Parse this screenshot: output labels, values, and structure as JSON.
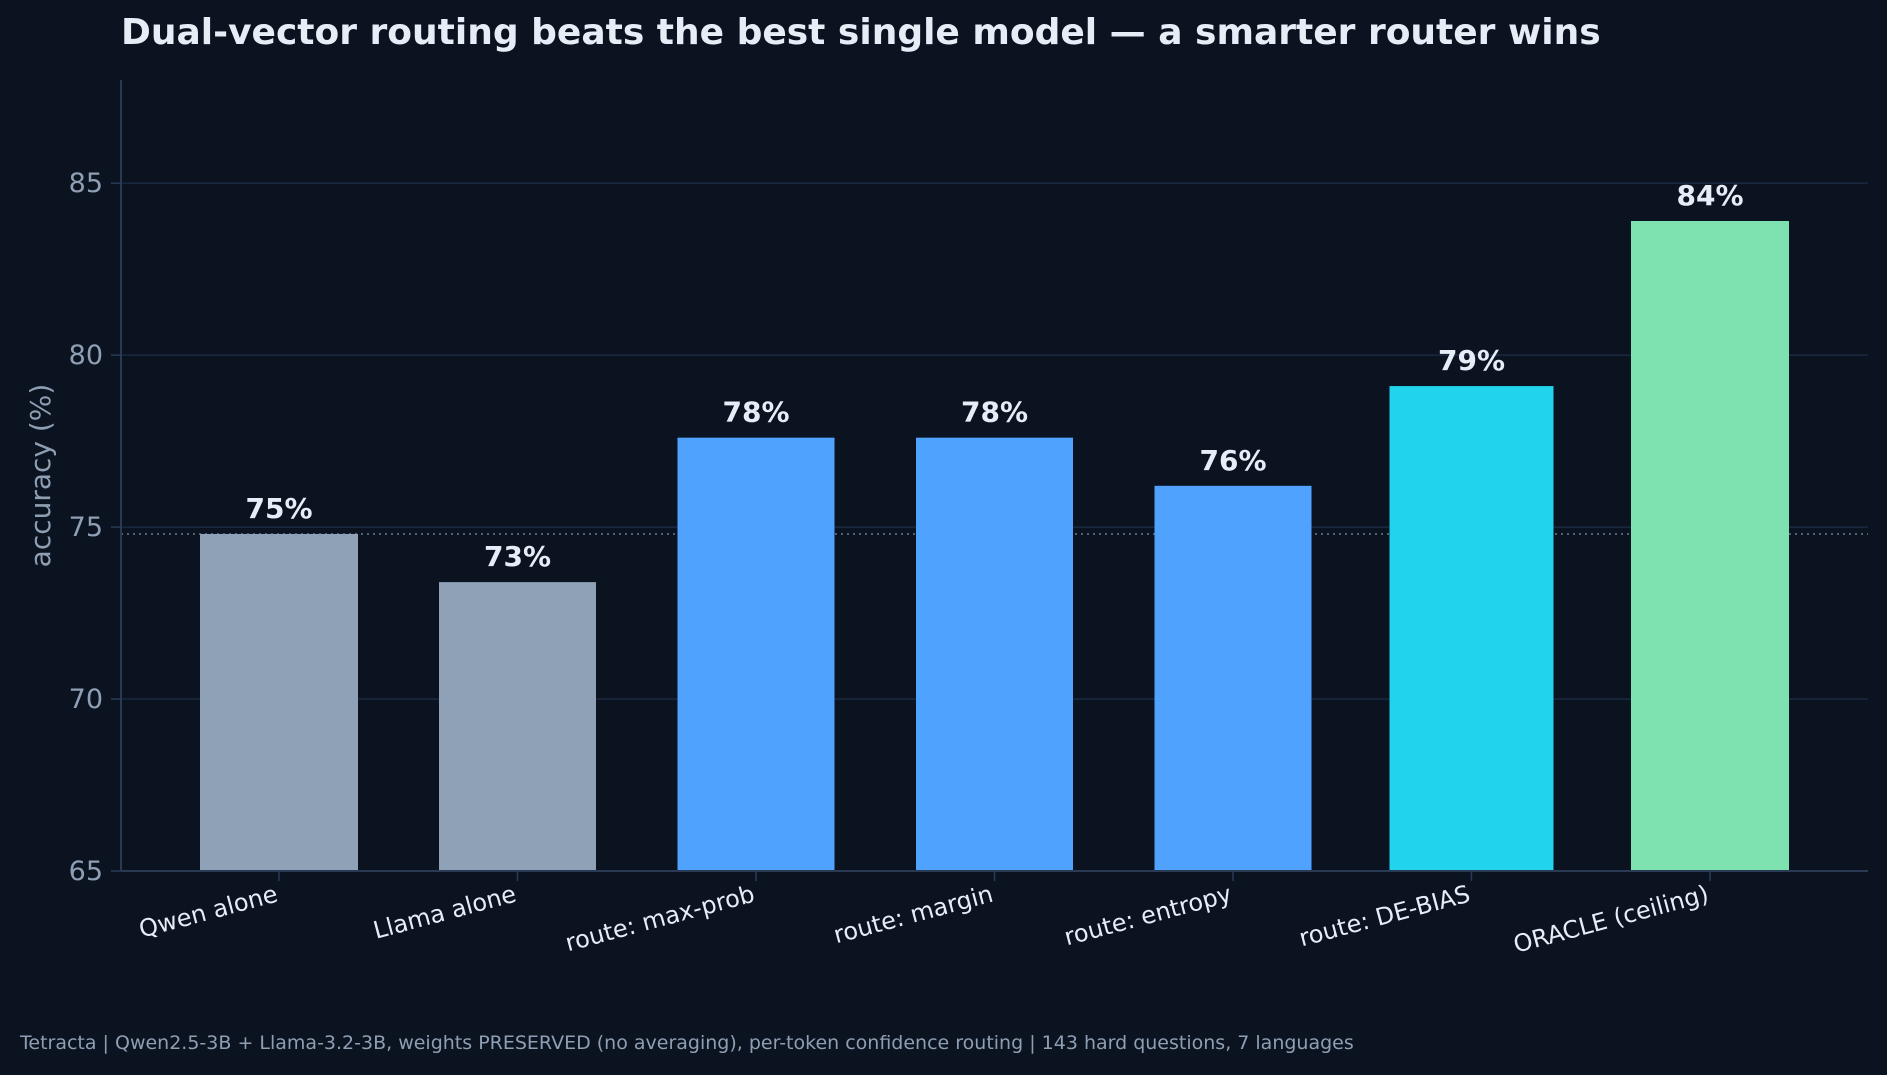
{
  "chart_data": {
    "type": "bar",
    "title": "Dual-vector routing beats the best single model — a smarter router wins",
    "ylabel": "accuracy (%)",
    "xlabel": "",
    "ylim": [
      65,
      88
    ],
    "yticks": [
      65,
      70,
      75,
      80,
      85
    ],
    "grid": true,
    "reference_line": 74.8,
    "categories": [
      "Qwen alone",
      "Llama alone",
      "route: max-prob",
      "route: margin",
      "route: entropy",
      "route: DE-BIAS",
      "ORACLE (ceiling)"
    ],
    "values": [
      74.8,
      73.4,
      77.6,
      77.6,
      76.2,
      79.1,
      83.9
    ],
    "value_labels": [
      "75%",
      "73%",
      "78%",
      "78%",
      "76%",
      "79%",
      "84%"
    ],
    "bar_colors": [
      "#8fa1b6",
      "#8fa1b6",
      "#4fa3ff",
      "#4fa3ff",
      "#4fa3ff",
      "#22d3ee",
      "#7ee2b0"
    ]
  },
  "footnote": "Tetracta | Qwen2.5-3B + Llama-3.2-3B, weights PRESERVED (no averaging), per-token confidence routing | 143 hard questions, 7 languages",
  "colors": {
    "background": "#0b1220",
    "grid": "#1b2a42",
    "axis": "#2a3a55",
    "tick_text": "#8f9fb3",
    "label_text": "#e6edf7",
    "reference_line": "#4f6278"
  }
}
